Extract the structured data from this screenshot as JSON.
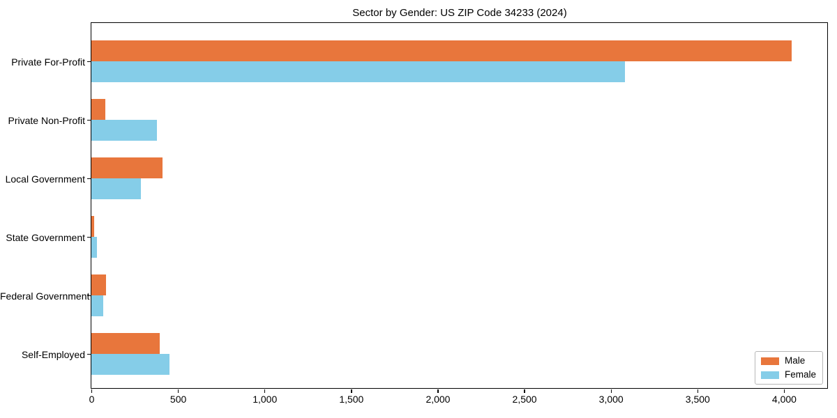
{
  "chart_data": {
    "type": "bar",
    "orientation": "horizontal",
    "title": "Sector by Gender: US ZIP Code 34233 (2024)",
    "categories": [
      "Private For-Profit",
      "Private Non-Profit",
      "Local Government",
      "State Government",
      "Federal Government",
      "Self-Employed"
    ],
    "series": [
      {
        "name": "Male",
        "color": "#e8763c",
        "values": [
          4045,
          80,
          410,
          16,
          85,
          395
        ]
      },
      {
        "name": "Female",
        "color": "#85cde8",
        "values": [
          3080,
          380,
          287,
          33,
          68,
          450
        ]
      }
    ],
    "xlabel": "",
    "ylabel": "",
    "xlim": [
      0,
      4250
    ],
    "xticks": [
      0,
      500,
      1000,
      1500,
      2000,
      2500,
      3000,
      3500,
      4000
    ],
    "xtick_labels": [
      "0",
      "500",
      "1,000",
      "1,500",
      "2,000",
      "2,500",
      "3,000",
      "3,500",
      "4,000"
    ],
    "grid": false,
    "legend_position": "lower right",
    "frame": true
  }
}
